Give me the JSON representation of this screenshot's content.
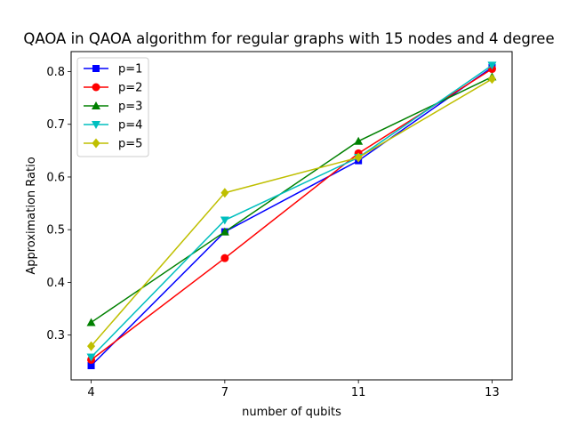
{
  "chart_data": {
    "type": "line",
    "title": "QAOA in QAOA algorithm for regular graphs with 15 nodes and 4 degree",
    "xlabel": "number of qubits",
    "ylabel": "Approximation Ratio",
    "x_categories": [
      "4",
      "7",
      "11",
      "13"
    ],
    "xlim": [
      -0.15,
      3.15
    ],
    "ylim": [
      0.215,
      0.838
    ],
    "yticks": [
      0.3,
      0.4,
      0.5,
      0.6,
      0.7,
      0.8
    ],
    "ytick_labels": [
      "0.3",
      "0.4",
      "0.5",
      "0.6",
      "0.7",
      "0.8"
    ],
    "grid": false,
    "legend_position": "top-left",
    "series": [
      {
        "name": "p=1",
        "color": "#0000ff",
        "marker": "square",
        "values": [
          0.242,
          0.496,
          0.631,
          0.808
        ]
      },
      {
        "name": "p=2",
        "color": "#ff0000",
        "marker": "circle",
        "values": [
          0.253,
          0.446,
          0.645,
          0.805
        ]
      },
      {
        "name": "p=3",
        "color": "#008000",
        "marker": "triangle-up",
        "values": [
          0.324,
          0.496,
          0.668,
          0.79
        ]
      },
      {
        "name": "p=4",
        "color": "#00bfbf",
        "marker": "triangle-down",
        "values": [
          0.258,
          0.518,
          0.637,
          0.812
        ]
      },
      {
        "name": "p=5",
        "color": "#bfbf00",
        "marker": "diamond",
        "values": [
          0.279,
          0.57,
          0.637,
          0.786
        ]
      }
    ]
  }
}
